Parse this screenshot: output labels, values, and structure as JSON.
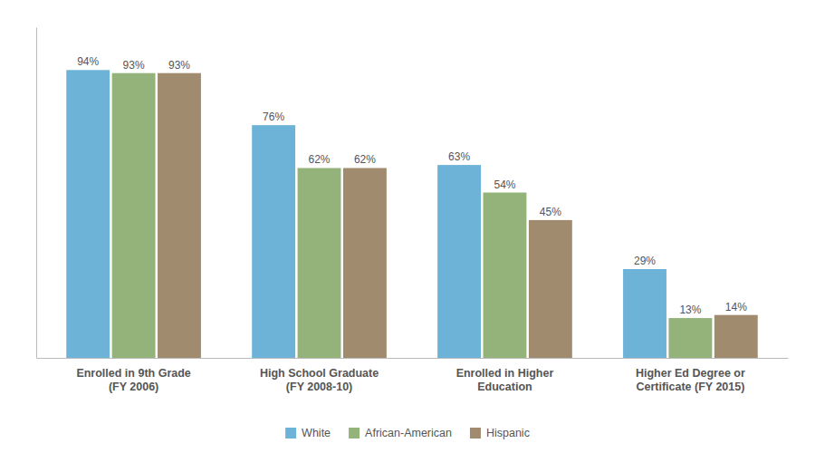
{
  "chart_data": {
    "type": "bar",
    "categories": [
      "Enrolled in 9th Grade\n(FY 2006)",
      "High School Graduate\n(FY 2008-10)",
      "Enrolled in Higher\nEducation",
      "Higher Ed Degree or\nCertificate (FY 2015)"
    ],
    "series": [
      {
        "name": "White",
        "color": "#6DB3D8",
        "values": [
          94,
          76,
          63,
          29
        ],
        "value_labels": [
          "94%",
          "76%",
          "63%",
          "29%"
        ]
      },
      {
        "name": "African-American",
        "color": "#93B37A",
        "values": [
          93,
          62,
          54,
          13
        ],
        "value_labels": [
          "93%",
          "62%",
          "54%",
          "13%"
        ]
      },
      {
        "name": "Hispanic",
        "color": "#A08B6E",
        "values": [
          93,
          62,
          45,
          14
        ],
        "value_labels": [
          "93%",
          "62%",
          "45%",
          "14%"
        ]
      }
    ],
    "ylim": [
      0,
      108
    ],
    "grid": false,
    "legend": "bottom",
    "data_labels": true,
    "tick_labels": "x"
  }
}
